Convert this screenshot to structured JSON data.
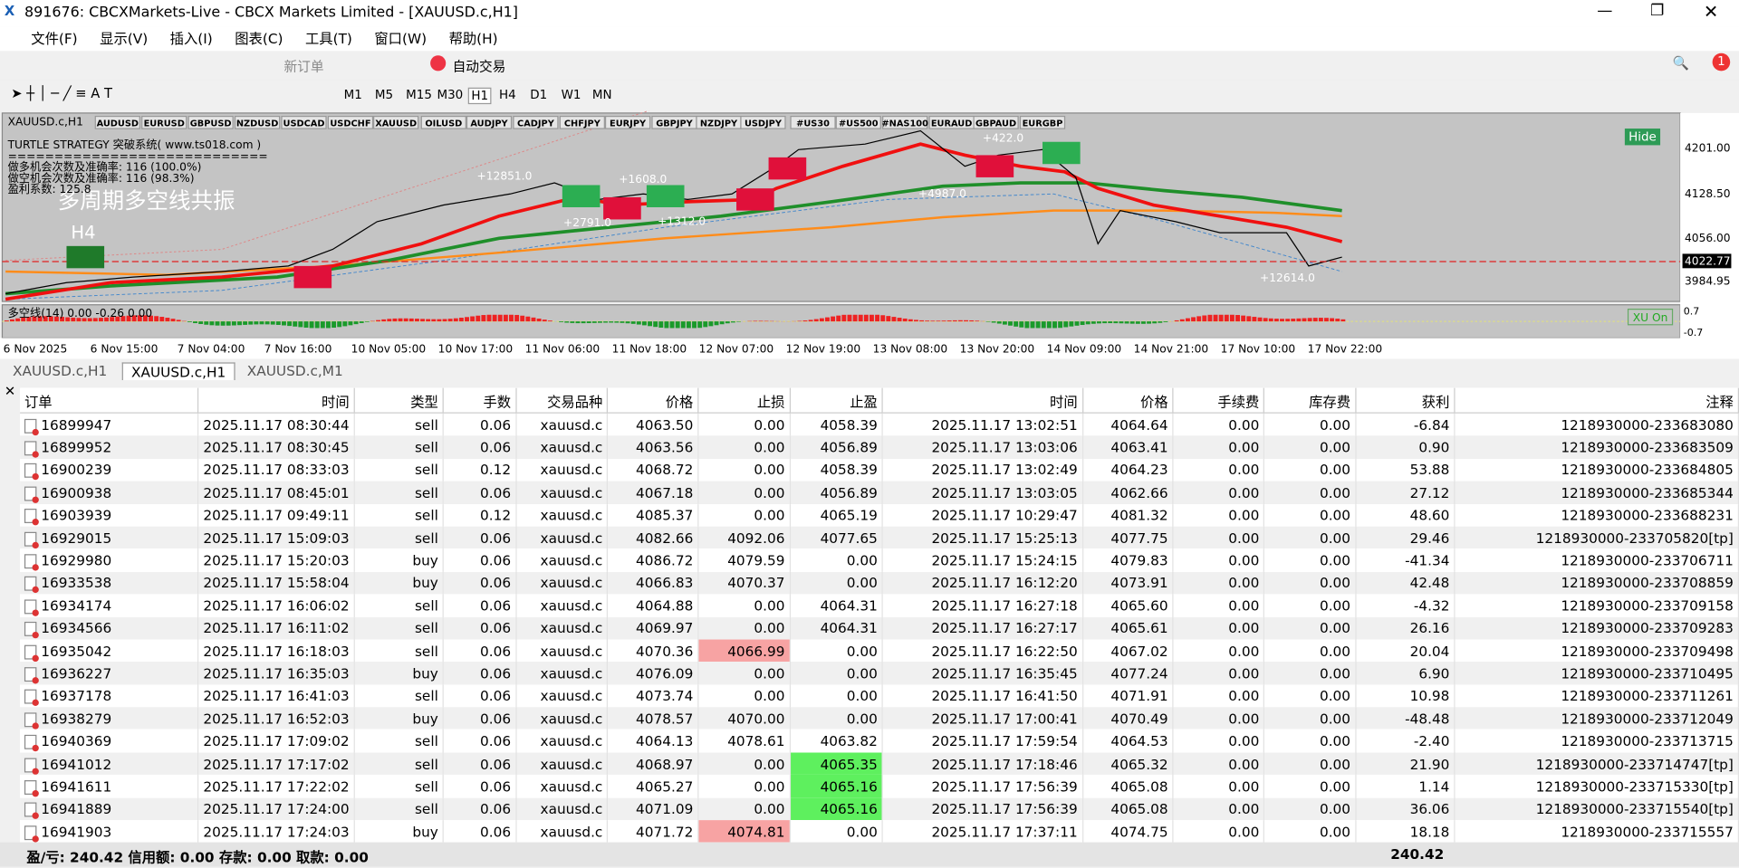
{
  "window": {
    "title": "891676: CBCXMarkets-Live - CBCX Markets Limited - [XAUUSD.c,H1]"
  },
  "menu": [
    "文件(F)",
    "显示(V)",
    "插入(I)",
    "图表(C)",
    "工具(T)",
    "窗口(W)",
    "帮助(H)"
  ],
  "toolbar": {
    "new_order": "新订单",
    "auto_trade": "自动交易",
    "timeframes": [
      "M1",
      "M5",
      "M15",
      "M30",
      "H1",
      "H4",
      "D1",
      "W1",
      "MN"
    ]
  },
  "chart": {
    "symbol": "XAUUSD.c,H1",
    "symbols": [
      "AUDUSD",
      "EURUSD",
      "GBPUSD",
      "NZDUSD",
      "USDCAD",
      "USDCHF",
      "XAUUSD",
      "OILUSD",
      "AUDJPY",
      "CADJPY",
      "CHFJPY",
      "EURJPY",
      "GBPJPY",
      "NZDJPY",
      "USDJPY",
      "#US30",
      "#US500",
      "#NAS100",
      "EURAUD",
      "GBPAUD",
      "EURGBP"
    ],
    "info": [
      "TURTLE STRATEGY 突破系统( www.ts018.com )",
      "============================",
      "做多机会次数及准确率: 116 (100.0%)",
      "做空机会次数及准确率: 116 (98.3%)",
      "盈利系数: 125.8"
    ],
    "banner": "多周期多空线共振",
    "banner_tf": "H4",
    "hide": "Hide",
    "annotations": [
      "+12851.0",
      "+1608.0",
      "+2791.0",
      "+1312.0",
      "+4987.0",
      "+422.0",
      "+12614.0"
    ],
    "price_labels": [
      "4201.00",
      "4128.50",
      "4056.00",
      "3984.95"
    ],
    "current_price": "4022.77",
    "indicator": "多空线(14) 0.00 -0.26 0.00",
    "indicator_btn": "XU On",
    "indicator_levels": [
      "0.7",
      "-0.7"
    ],
    "time_labels": [
      "6 Nov 2025",
      "6 Nov 15:00",
      "7 Nov 04:00",
      "7 Nov 16:00",
      "10 Nov 05:00",
      "10 Nov 17:00",
      "11 Nov 06:00",
      "11 Nov 18:00",
      "12 Nov 07:00",
      "12 Nov 19:00",
      "13 Nov 08:00",
      "13 Nov 20:00",
      "14 Nov 09:00",
      "14 Nov 21:00",
      "17 Nov 10:00",
      "17 Nov 22:00"
    ]
  },
  "tabs": [
    "XAUUSD.c,H1",
    "XAUUSD.c,H1",
    "XAUUSD.c,M1"
  ],
  "table": {
    "headers": [
      "订单",
      "时间",
      "类型",
      "手数",
      "交易品种",
      "价格",
      "止损",
      "止盈",
      "时间",
      "价格",
      "手续费",
      "库存费",
      "获利",
      "注释"
    ],
    "rows": [
      [
        "16899947",
        "2025.11.17 08:30:44",
        "sell",
        "0.06",
        "xauusd.c",
        "4063.50",
        "0.00",
        "4058.39",
        "2025.11.17 13:02:51",
        "4064.64",
        "0.00",
        "0.00",
        "-6.84",
        "1218930000-233683080"
      ],
      [
        "16899952",
        "2025.11.17 08:30:45",
        "sell",
        "0.06",
        "xauusd.c",
        "4063.56",
        "0.00",
        "4056.89",
        "2025.11.17 13:03:06",
        "4063.41",
        "0.00",
        "0.00",
        "0.90",
        "1218930000-233683509"
      ],
      [
        "16900239",
        "2025.11.17 08:33:03",
        "sell",
        "0.12",
        "xauusd.c",
        "4068.72",
        "0.00",
        "4058.39",
        "2025.11.17 13:02:49",
        "4064.23",
        "0.00",
        "0.00",
        "53.88",
        "1218930000-233684805"
      ],
      [
        "16900938",
        "2025.11.17 08:45:01",
        "sell",
        "0.06",
        "xauusd.c",
        "4067.18",
        "0.00",
        "4056.89",
        "2025.11.17 13:03:05",
        "4062.66",
        "0.00",
        "0.00",
        "27.12",
        "1218930000-233685344"
      ],
      [
        "16903939",
        "2025.11.17 09:49:11",
        "sell",
        "0.12",
        "xauusd.c",
        "4085.37",
        "0.00",
        "4065.19",
        "2025.11.17 10:29:47",
        "4081.32",
        "0.00",
        "0.00",
        "48.60",
        "1218930000-233688231"
      ],
      [
        "16929015",
        "2025.11.17 15:09:03",
        "sell",
        "0.06",
        "xauusd.c",
        "4082.66",
        "4092.06",
        "4077.65",
        "2025.11.17 15:25:13",
        "4077.75",
        "0.00",
        "0.00",
        "29.46",
        "1218930000-233705820[tp]"
      ],
      [
        "16929980",
        "2025.11.17 15:20:03",
        "buy",
        "0.06",
        "xauusd.c",
        "4086.72",
        "4079.59",
        "0.00",
        "2025.11.17 15:24:15",
        "4079.83",
        "0.00",
        "0.00",
        "-41.34",
        "1218930000-233706711"
      ],
      [
        "16933538",
        "2025.11.17 15:58:04",
        "buy",
        "0.06",
        "xauusd.c",
        "4066.83",
        "4070.37",
        "0.00",
        "2025.11.17 16:12:20",
        "4073.91",
        "0.00",
        "0.00",
        "42.48",
        "1218930000-233708859"
      ],
      [
        "16934174",
        "2025.11.17 16:06:02",
        "sell",
        "0.06",
        "xauusd.c",
        "4064.88",
        "0.00",
        "4064.31",
        "2025.11.17 16:27:18",
        "4065.60",
        "0.00",
        "0.00",
        "-4.32",
        "1218930000-233709158"
      ],
      [
        "16934566",
        "2025.11.17 16:11:02",
        "sell",
        "0.06",
        "xauusd.c",
        "4069.97",
        "0.00",
        "4064.31",
        "2025.11.17 16:27:17",
        "4065.61",
        "0.00",
        "0.00",
        "26.16",
        "1218930000-233709283"
      ],
      [
        "16935042",
        "2025.11.17 16:18:03",
        "sell",
        "0.06",
        "xauusd.c",
        "4070.36",
        "4066.99",
        "0.00",
        "2025.11.17 16:22:50",
        "4067.02",
        "0.00",
        "0.00",
        "20.04",
        "1218930000-233709498"
      ],
      [
        "16936227",
        "2025.11.17 16:35:03",
        "buy",
        "0.06",
        "xauusd.c",
        "4076.09",
        "0.00",
        "0.00",
        "2025.11.17 16:35:45",
        "4077.24",
        "0.00",
        "0.00",
        "6.90",
        "1218930000-233710495"
      ],
      [
        "16937178",
        "2025.11.17 16:41:03",
        "sell",
        "0.06",
        "xauusd.c",
        "4073.74",
        "0.00",
        "0.00",
        "2025.11.17 16:41:50",
        "4071.91",
        "0.00",
        "0.00",
        "10.98",
        "1218930000-233711261"
      ],
      [
        "16938279",
        "2025.11.17 16:52:03",
        "buy",
        "0.06",
        "xauusd.c",
        "4078.57",
        "4070.00",
        "0.00",
        "2025.11.17 17:00:41",
        "4070.49",
        "0.00",
        "0.00",
        "-48.48",
        "1218930000-233712049"
      ],
      [
        "16940369",
        "2025.11.17 17:09:02",
        "sell",
        "0.06",
        "xauusd.c",
        "4064.13",
        "4078.61",
        "4063.82",
        "2025.11.17 17:59:54",
        "4064.53",
        "0.00",
        "0.00",
        "-2.40",
        "1218930000-233713715"
      ],
      [
        "16941012",
        "2025.11.17 17:17:02",
        "sell",
        "0.06",
        "xauusd.c",
        "4068.97",
        "0.00",
        "4065.35",
        "2025.11.17 17:18:46",
        "4065.32",
        "0.00",
        "0.00",
        "21.90",
        "1218930000-233714747[tp]"
      ],
      [
        "16941611",
        "2025.11.17 17:22:02",
        "sell",
        "0.06",
        "xauusd.c",
        "4065.27",
        "0.00",
        "4065.16",
        "2025.11.17 17:56:39",
        "4065.08",
        "0.00",
        "0.00",
        "1.14",
        "1218930000-233715330[tp]"
      ],
      [
        "16941889",
        "2025.11.17 17:24:00",
        "sell",
        "0.06",
        "xauusd.c",
        "4071.09",
        "0.00",
        "4065.16",
        "2025.11.17 17:56:39",
        "4065.08",
        "0.00",
        "0.00",
        "36.06",
        "1218930000-233715540[tp]"
      ],
      [
        "16941903",
        "2025.11.17 17:24:03",
        "buy",
        "0.06",
        "xauusd.c",
        "4071.72",
        "4074.81",
        "0.00",
        "2025.11.17 17:37:11",
        "4074.75",
        "0.00",
        "0.00",
        "18.18",
        "1218930000-233715557"
      ]
    ],
    "highlights": [
      {
        "row": 10,
        "col": 6,
        "color": "#f7a3a3"
      },
      {
        "row": 15,
        "col": 7,
        "color": "#5ef05e"
      },
      {
        "row": 16,
        "col": 7,
        "color": "#5ef05e"
      },
      {
        "row": 17,
        "col": 7,
        "color": "#5ef05e"
      },
      {
        "row": 18,
        "col": 6,
        "color": "#f7a3a3"
      }
    ]
  },
  "footer": {
    "summary": "盈/亏: 240.42 信用额: 0.00 存款: 0.00 取款: 0.00",
    "total": "240.42"
  }
}
